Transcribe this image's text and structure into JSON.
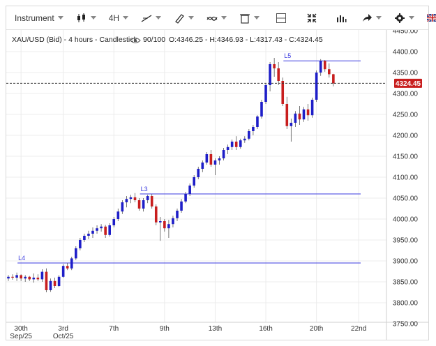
{
  "toolbar": {
    "instrument_label": "Instrument",
    "timeframe_label": "4H",
    "icons": [
      "candlestick-type-icon",
      "trendline-icon",
      "drawing-pen-icon",
      "indicator-icon",
      "trash-icon",
      "layout-icon",
      "fullscreen-icon",
      "volume-bars-icon",
      "share-arrow-icon",
      "settings-icon",
      "uk-flag-icon"
    ]
  },
  "info_line": {
    "title": "XAU/USD (Bid) - 4 hours - Candlestick",
    "sentiment": "90/100",
    "ohlc": "O:4346.25 - H:4346.93 - L:4317.43 - C:4324.45"
  },
  "colors": {
    "up": "#1e1ec8",
    "down": "#c81e1e",
    "hline": "#3a3adf",
    "grid": "#ececec",
    "price_tag": "#c81e1e"
  },
  "chart_data": {
    "type": "candlestick",
    "title": "XAU/USD (Bid) - 4 hours - Candlestick",
    "ylim": [
      3750,
      4450
    ],
    "y_ticks": [
      "3750.00",
      "3800.00",
      "3850.00",
      "3900.00",
      "3950.00",
      "4000.00",
      "4050.00",
      "4100.00",
      "4150.00",
      "4200.00",
      "4250.00",
      "4300.00",
      "4350.00",
      "4400.00",
      "4450.00"
    ],
    "x_ticks": [
      {
        "label": "30th",
        "sub": "Sep/25",
        "bar": 3
      },
      {
        "label": "3rd",
        "sub": "Oct/25",
        "bar": 13
      },
      {
        "label": "7th",
        "sub": "",
        "bar": 25
      },
      {
        "label": "9th",
        "sub": "",
        "bar": 37
      },
      {
        "label": "13th",
        "sub": "",
        "bar": 49
      },
      {
        "label": "16th",
        "sub": "",
        "bar": 61
      },
      {
        "label": "20th",
        "sub": "",
        "bar": 73
      },
      {
        "label": "22nd",
        "sub": "",
        "bar": 83
      }
    ],
    "current_price": "4324.45",
    "horizontal_lines": [
      {
        "label": "L4",
        "value": 3895,
        "from_bar": 3
      },
      {
        "label": "L3",
        "value": 4060,
        "from_bar": 32
      },
      {
        "label": "L5",
        "value": 4378,
        "from_bar": 66
      }
    ],
    "candles": [
      [
        3858,
        3866,
        3852,
        3862
      ],
      [
        3862,
        3868,
        3855,
        3860
      ],
      [
        3860,
        3872,
        3852,
        3866
      ],
      [
        3866,
        3868,
        3852,
        3858
      ],
      [
        3858,
        3866,
        3850,
        3862
      ],
      [
        3862,
        3864,
        3852,
        3856
      ],
      [
        3856,
        3870,
        3848,
        3860
      ],
      [
        3860,
        3868,
        3852,
        3856
      ],
      [
        3856,
        3880,
        3850,
        3874
      ],
      [
        3874,
        3882,
        3825,
        3830
      ],
      [
        3830,
        3858,
        3826,
        3852
      ],
      [
        3852,
        3860,
        3835,
        3840
      ],
      [
        3840,
        3866,
        3838,
        3862
      ],
      [
        3862,
        3892,
        3860,
        3888
      ],
      [
        3888,
        3895,
        3878,
        3882
      ],
      [
        3882,
        3910,
        3878,
        3906
      ],
      [
        3906,
        3935,
        3902,
        3930
      ],
      [
        3930,
        3955,
        3925,
        3950
      ],
      [
        3950,
        3965,
        3945,
        3960
      ],
      [
        3960,
        3972,
        3952,
        3965
      ],
      [
        3965,
        3980,
        3955,
        3972
      ],
      [
        3972,
        3985,
        3965,
        3978
      ],
      [
        3978,
        3988,
        3970,
        3982
      ],
      [
        3982,
        3986,
        3955,
        3962
      ],
      [
        3962,
        3990,
        3958,
        3985
      ],
      [
        3985,
        4005,
        3980,
        4000
      ],
      [
        4000,
        4025,
        3995,
        4018
      ],
      [
        4018,
        4045,
        4012,
        4040
      ],
      [
        4040,
        4055,
        4028,
        4048
      ],
      [
        4048,
        4058,
        4038,
        4052
      ],
      [
        4052,
        4062,
        4040,
        4045
      ],
      [
        4045,
        4050,
        4020,
        4025
      ],
      [
        4025,
        4050,
        4018,
        4045
      ],
      [
        4045,
        4058,
        4038,
        4055
      ],
      [
        4055,
        4060,
        4025,
        4030
      ],
      [
        4030,
        4035,
        3985,
        3992
      ],
      [
        3992,
        4005,
        3948,
        3995
      ],
      [
        3995,
        4000,
        3970,
        3978
      ],
      [
        3978,
        3998,
        3955,
        3988
      ],
      [
        3988,
        4008,
        3980,
        4002
      ],
      [
        4002,
        4025,
        3995,
        4020
      ],
      [
        4020,
        4048,
        4015,
        4042
      ],
      [
        4042,
        4065,
        4038,
        4060
      ],
      [
        4060,
        4085,
        4055,
        4080
      ],
      [
        4080,
        4105,
        4075,
        4100
      ],
      [
        4100,
        4125,
        4095,
        4120
      ],
      [
        4120,
        4140,
        4112,
        4135
      ],
      [
        4135,
        4160,
        4130,
        4155
      ],
      [
        4155,
        4165,
        4125,
        4130
      ],
      [
        4130,
        4145,
        4105,
        4140
      ],
      [
        4140,
        4150,
        4130,
        4145
      ],
      [
        4145,
        4170,
        4140,
        4165
      ],
      [
        4165,
        4178,
        4155,
        4172
      ],
      [
        4172,
        4190,
        4165,
        4185
      ],
      [
        4185,
        4198,
        4165,
        4172
      ],
      [
        4172,
        4192,
        4168,
        4188
      ],
      [
        4188,
        4198,
        4182,
        4192
      ],
      [
        4192,
        4215,
        4188,
        4210
      ],
      [
        4210,
        4225,
        4200,
        4220
      ],
      [
        4220,
        4248,
        4215,
        4245
      ],
      [
        4245,
        4285,
        4240,
        4280
      ],
      [
        4280,
        4325,
        4275,
        4320
      ],
      [
        4320,
        4375,
        4305,
        4370
      ],
      [
        4370,
        4385,
        4340,
        4360
      ],
      [
        4360,
        4375,
        4320,
        4330
      ],
      [
        4330,
        4338,
        4270,
        4275
      ],
      [
        4275,
        4292,
        4215,
        4222
      ],
      [
        4222,
        4240,
        4185,
        4230
      ],
      [
        4230,
        4258,
        4220,
        4252
      ],
      [
        4252,
        4270,
        4225,
        4238
      ],
      [
        4238,
        4268,
        4232,
        4262
      ],
      [
        4262,
        4275,
        4235,
        4248
      ],
      [
        4248,
        4290,
        4242,
        4285
      ],
      [
        4285,
        4355,
        4280,
        4350
      ],
      [
        4350,
        4382,
        4342,
        4378
      ],
      [
        4378,
        4380,
        4352,
        4358
      ],
      [
        4358,
        4372,
        4338,
        4346
      ],
      [
        4346,
        4347,
        4317,
        4324
      ]
    ]
  }
}
